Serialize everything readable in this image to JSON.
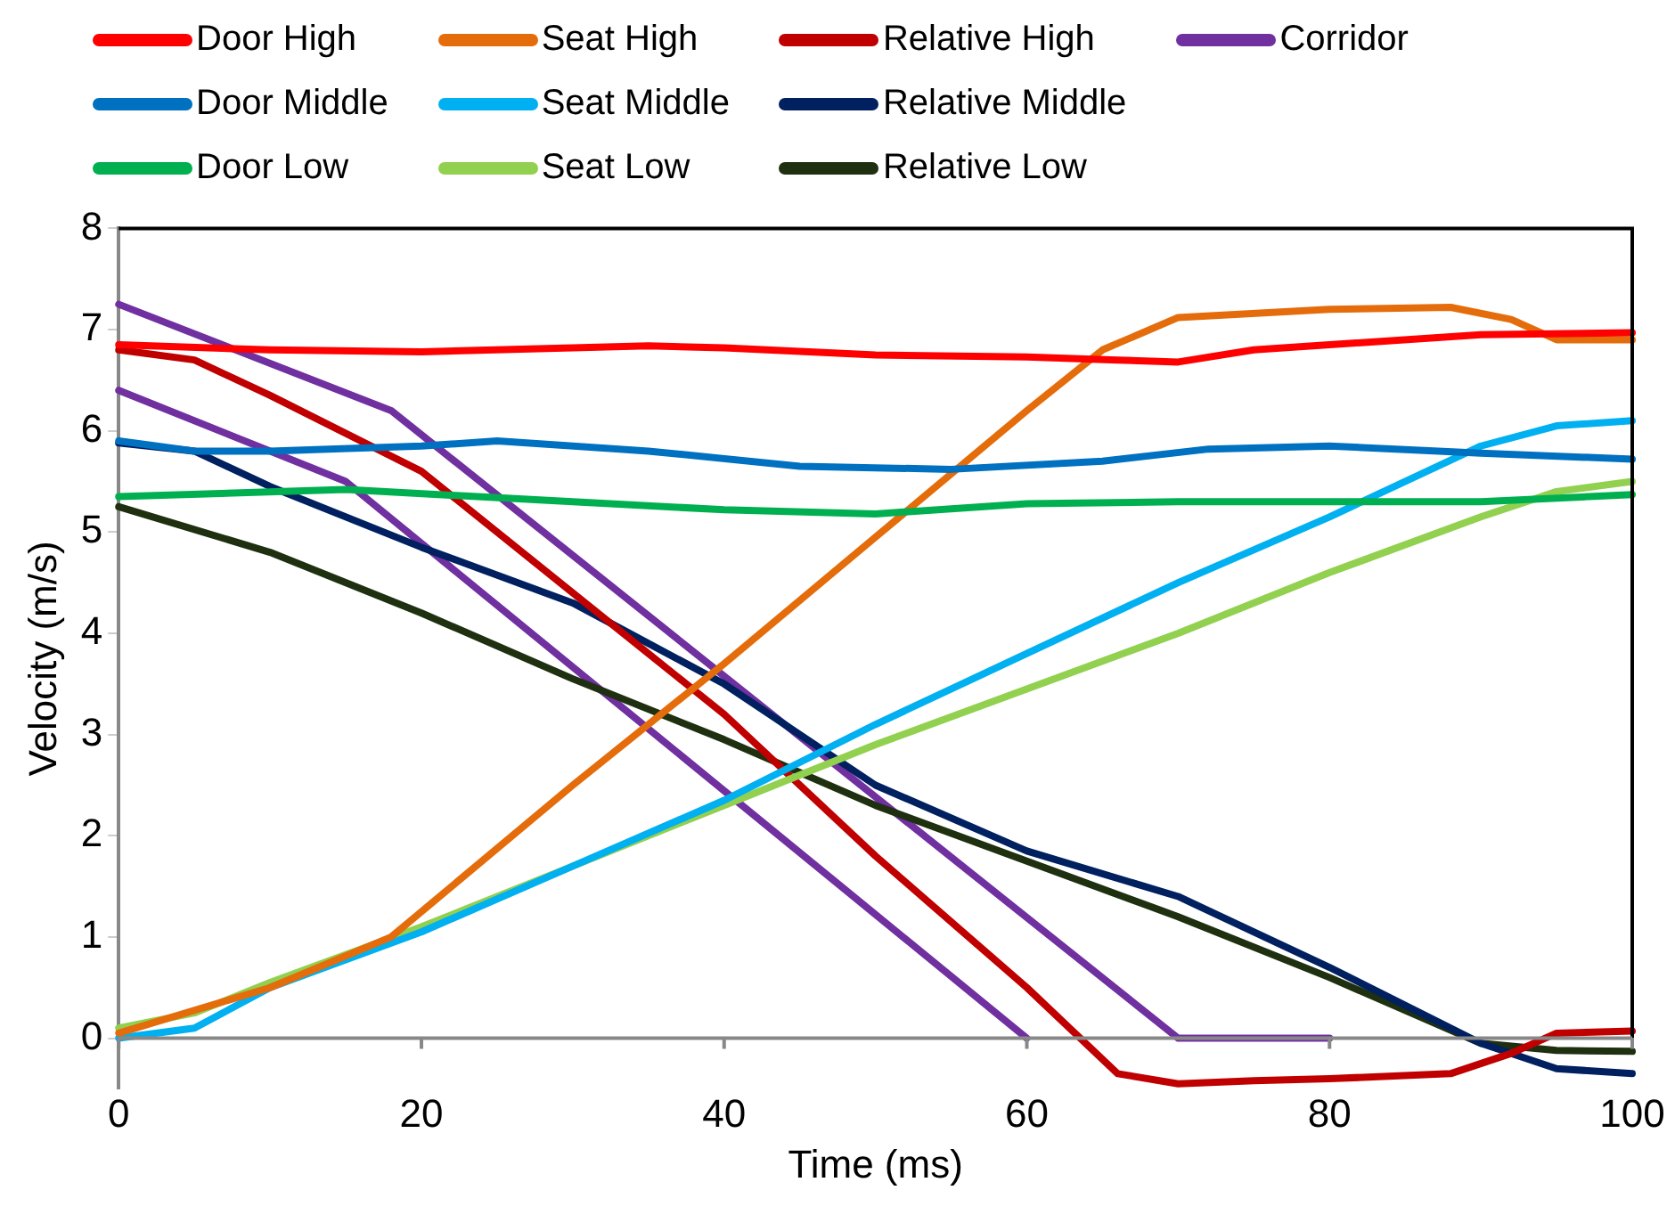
{
  "chart_data": {
    "type": "line",
    "xlabel": "Time (ms)",
    "ylabel": "Velocity (m/s)",
    "xlim": [
      0,
      100
    ],
    "xticks": [
      0,
      20,
      40,
      60,
      80,
      100
    ],
    "ylim": [
      -0.5,
      8
    ],
    "yticks": [
      0,
      1,
      2,
      3,
      4,
      5,
      6,
      7,
      8
    ],
    "grid": false,
    "legend": "top",
    "marker": "none",
    "line_style": "solid",
    "series": [
      {
        "name": "Door High",
        "color": "#ff0000",
        "x": [
          0,
          10,
          20,
          30,
          35,
          40,
          50,
          60,
          66,
          70,
          75,
          80,
          90,
          100
        ],
        "values": [
          6.85,
          6.8,
          6.78,
          6.82,
          6.84,
          6.82,
          6.75,
          6.73,
          6.7,
          6.68,
          6.8,
          6.85,
          6.95,
          6.97
        ]
      },
      {
        "name": "Door Middle",
        "color": "#0070c0",
        "x": [
          0,
          5,
          10,
          20,
          25,
          35,
          45,
          55,
          65,
          72,
          80,
          90,
          100
        ],
        "values": [
          5.9,
          5.8,
          5.8,
          5.85,
          5.9,
          5.8,
          5.65,
          5.62,
          5.7,
          5.82,
          5.85,
          5.78,
          5.72
        ]
      },
      {
        "name": "Door Low",
        "color": "#00b050",
        "x": [
          0,
          15,
          30,
          40,
          50,
          60,
          70,
          80,
          90,
          100
        ],
        "values": [
          5.35,
          5.42,
          5.3,
          5.22,
          5.18,
          5.28,
          5.3,
          5.3,
          5.3,
          5.37
        ]
      },
      {
        "name": "Seat High",
        "color": "#e46c0a",
        "x": [
          0,
          10,
          18,
          20,
          30,
          40,
          50,
          60,
          65,
          70,
          80,
          88,
          92,
          95,
          100
        ],
        "values": [
          0.05,
          0.5,
          1.0,
          1.25,
          2.5,
          3.7,
          4.95,
          6.2,
          6.8,
          7.12,
          7.2,
          7.22,
          7.1,
          6.9,
          6.9
        ]
      },
      {
        "name": "Seat Middle",
        "color": "#00b0f0",
        "x": [
          0,
          5,
          10,
          20,
          30,
          40,
          50,
          60,
          70,
          80,
          90,
          95,
          100
        ],
        "values": [
          0.0,
          0.1,
          0.5,
          1.05,
          1.7,
          2.35,
          3.1,
          3.8,
          4.5,
          5.15,
          5.85,
          6.05,
          6.1
        ]
      },
      {
        "name": "Seat Low",
        "color": "#92d050",
        "x": [
          0,
          5,
          10,
          20,
          30,
          40,
          50,
          60,
          70,
          80,
          90,
          95,
          100
        ],
        "values": [
          0.1,
          0.25,
          0.55,
          1.1,
          1.7,
          2.3,
          2.9,
          3.45,
          4.0,
          4.6,
          5.15,
          5.4,
          5.5
        ]
      },
      {
        "name": "Relative High",
        "color": "#c00000",
        "x": [
          0,
          5,
          10,
          20,
          30,
          40,
          50,
          60,
          66,
          70,
          75,
          80,
          88,
          92,
          95,
          100
        ],
        "values": [
          6.8,
          6.7,
          6.35,
          5.6,
          4.4,
          3.2,
          1.8,
          0.5,
          -0.35,
          -0.45,
          -0.42,
          -0.4,
          -0.35,
          -0.15,
          0.05,
          0.07
        ]
      },
      {
        "name": "Relative Middle",
        "color": "#002060",
        "x": [
          0,
          5,
          10,
          20,
          30,
          40,
          50,
          60,
          70,
          80,
          90,
          95,
          100
        ],
        "values": [
          5.88,
          5.8,
          5.45,
          4.85,
          4.3,
          3.5,
          2.5,
          1.85,
          1.4,
          0.7,
          -0.05,
          -0.3,
          -0.35
        ]
      },
      {
        "name": "Relative Low",
        "color": "#1f3010",
        "x": [
          0,
          10,
          20,
          30,
          40,
          50,
          60,
          70,
          80,
          90,
          95,
          100
        ],
        "values": [
          5.25,
          4.8,
          4.2,
          3.55,
          2.95,
          2.3,
          1.75,
          1.2,
          0.6,
          -0.05,
          -0.12,
          -0.13
        ]
      },
      {
        "name": "Corridor",
        "color": "#7030a0",
        "x": [
          0,
          18,
          70,
          80
        ],
        "values": [
          7.25,
          6.2,
          0,
          0
        ]
      },
      {
        "color": "#7030a0",
        "x": [
          0,
          15,
          60
        ],
        "values": [
          6.4,
          5.5,
          0
        ]
      }
    ]
  }
}
